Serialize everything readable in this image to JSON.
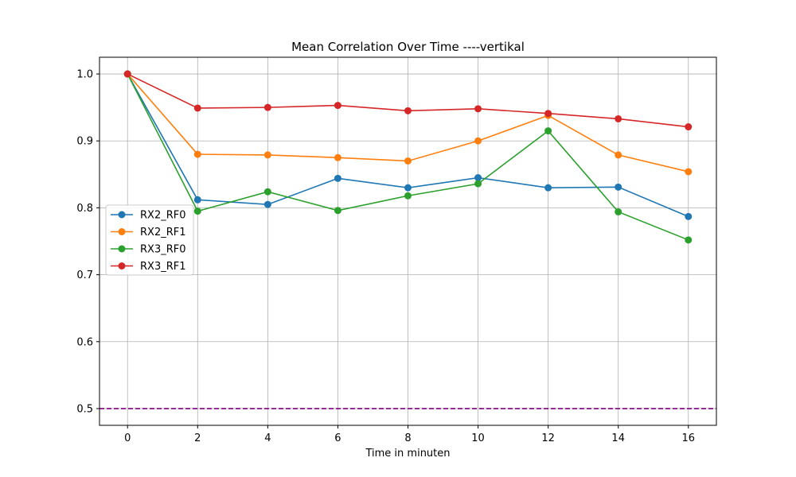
{
  "chart_data": {
    "type": "line",
    "title": "Mean Correlation Over Time ----vertikal",
    "xlabel": "Time in minuten",
    "ylabel": "",
    "x": [
      0,
      2,
      4,
      6,
      8,
      10,
      12,
      14,
      16
    ],
    "xlim": [
      -0.8,
      16.8
    ],
    "ylim": [
      0.475,
      1.025
    ],
    "xticks": [
      0,
      2,
      4,
      6,
      8,
      10,
      12,
      14,
      16
    ],
    "yticks": [
      0.5,
      0.6,
      0.7,
      0.8,
      0.9,
      1.0
    ],
    "ytick_labels": [
      "0.5",
      "0.6",
      "0.7",
      "0.8",
      "0.9",
      "1.0"
    ],
    "grid": true,
    "legend_position": "center-left",
    "series": [
      {
        "name": "RX2_RF0",
        "color": "#1f77b4",
        "values": [
          1.0,
          0.812,
          0.805,
          0.844,
          0.83,
          0.845,
          0.83,
          0.831,
          0.787
        ]
      },
      {
        "name": "RX2_RF1",
        "color": "#ff7f0e",
        "values": [
          1.0,
          0.88,
          0.879,
          0.875,
          0.87,
          0.9,
          0.938,
          0.879,
          0.854
        ]
      },
      {
        "name": "RX3_RF0",
        "color": "#2ca02c",
        "values": [
          1.0,
          0.795,
          0.824,
          0.796,
          0.818,
          0.836,
          0.915,
          0.794,
          0.752
        ]
      },
      {
        "name": "RX3_RF1",
        "color": "#d62728",
        "values": [
          1.0,
          0.949,
          0.95,
          0.953,
          0.945,
          0.948,
          0.941,
          0.933,
          0.921
        ]
      }
    ],
    "reference_line": {
      "y": 0.5,
      "color": "#800080",
      "style": "dashed"
    }
  }
}
